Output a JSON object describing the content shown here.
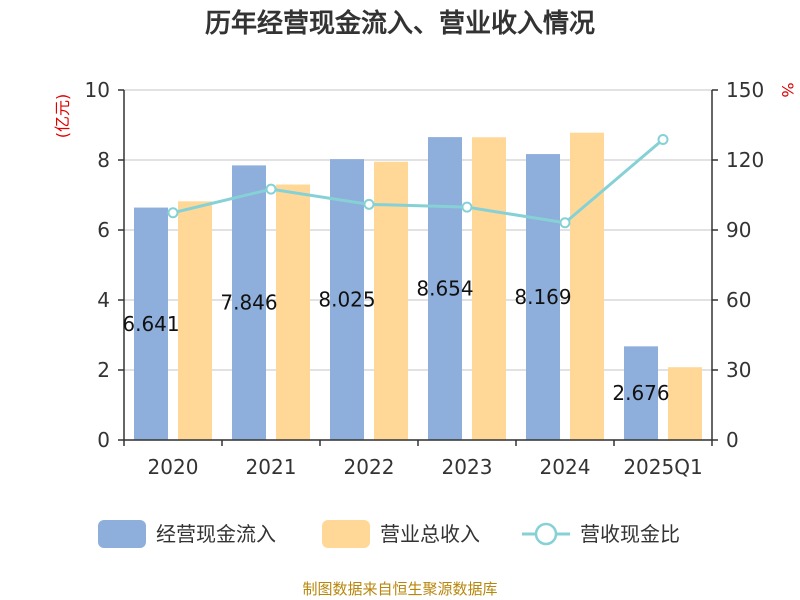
{
  "title": "历年经营现金流入、营业收入情况",
  "source": "制图数据来自恒生聚源数据库",
  "chart_data": {
    "type": "bar",
    "categories": [
      "2020",
      "2021",
      "2022",
      "2023",
      "2024",
      "2025Q1"
    ],
    "series": [
      {
        "name": "经营现金流入",
        "kind": "bar",
        "axis": "left",
        "color": "#8eaedb",
        "values": [
          6.641,
          7.846,
          8.025,
          8.654,
          8.169,
          2.676
        ],
        "labels": [
          "6.641",
          "7.846",
          "8.025",
          "8.654",
          "8.169",
          "2.676"
        ]
      },
      {
        "name": "营业总收入",
        "kind": "bar",
        "axis": "left",
        "color": "#ffd898",
        "values": [
          6.82,
          7.3,
          7.95,
          8.65,
          8.78,
          2.08
        ]
      },
      {
        "name": "营收现金比",
        "kind": "line",
        "axis": "right",
        "color": "#86d1d6",
        "values": [
          97.4,
          107.5,
          101.0,
          99.8,
          93.1,
          128.8
        ]
      }
    ],
    "y_left": {
      "unit": "(亿元)",
      "min": 0,
      "max": 10,
      "ticks": [
        0,
        2,
        4,
        6,
        8,
        10
      ]
    },
    "y_right": {
      "unit": "%",
      "min": 0,
      "max": 150,
      "ticks": [
        0,
        30,
        60,
        90,
        120,
        150
      ]
    },
    "grid": true,
    "legend_position": "bottom"
  }
}
